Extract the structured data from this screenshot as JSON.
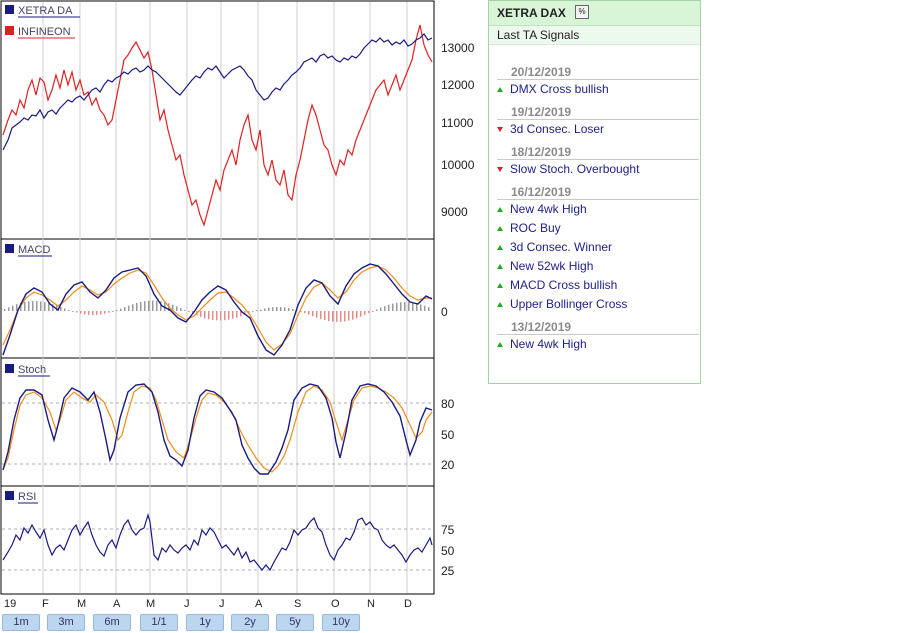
{
  "chart": {
    "legend": [
      {
        "label": "XETRA DA",
        "color": "#1a1a80"
      },
      {
        "label": "INFINEON",
        "color": "#e02020"
      }
    ],
    "panes": {
      "macd": "MACD",
      "stoch": "Stoch",
      "rsi": "RSI"
    },
    "price_ticks": [
      "13000",
      "12000",
      "11000",
      "10000",
      "9000"
    ],
    "macd_ticks": [
      "0"
    ],
    "stoch_ticks": [
      "80",
      "50",
      "20"
    ],
    "rsi_ticks": [
      "75",
      "50",
      "25"
    ],
    "months": [
      "19",
      "F",
      "M",
      "A",
      "M",
      "J",
      "J",
      "A",
      "S",
      "O",
      "N",
      "D"
    ],
    "ranges": [
      "1m",
      "3m",
      "6m",
      "1/1",
      "1y",
      "2y",
      "5y",
      "10y"
    ]
  },
  "panel": {
    "title": "XETRA DAX",
    "pct_icon": "%",
    "subtitle": "Last TA Signals",
    "groups": [
      {
        "date": "20/12/2019",
        "signals": [
          {
            "text": "DMX Cross bullish",
            "dir": "up"
          }
        ]
      },
      {
        "date": "19/12/2019",
        "signals": [
          {
            "text": "3d Consec. Loser",
            "dir": "down"
          }
        ]
      },
      {
        "date": "18/12/2019",
        "signals": [
          {
            "text": "Slow Stoch. Overbought",
            "dir": "down"
          }
        ]
      },
      {
        "date": "16/12/2019",
        "signals": [
          {
            "text": "New 4wk High",
            "dir": "up"
          },
          {
            "text": "ROC Buy",
            "dir": "up"
          },
          {
            "text": "3d Consec. Winner",
            "dir": "up"
          },
          {
            "text": "New 52wk High",
            "dir": "up"
          },
          {
            "text": "MACD Cross bullish",
            "dir": "up"
          },
          {
            "text": "Upper Bollinger Cross",
            "dir": "up"
          }
        ]
      },
      {
        "date": "13/12/2019",
        "signals": [
          {
            "text": "New 4wk High",
            "dir": "up"
          }
        ]
      }
    ]
  }
}
